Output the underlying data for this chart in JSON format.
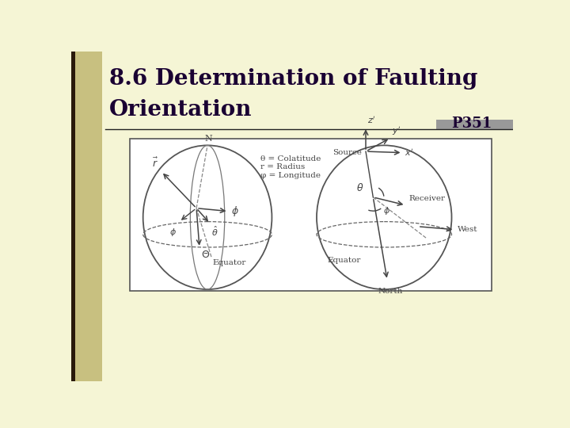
{
  "bg_color": "#f5f5d5",
  "left_bar_color": "#c8c080",
  "dark_bar_color": "#2a1a0a",
  "title_line1": "8.6 Determination of Faulting",
  "title_line2": "Orientation",
  "page_ref": "P351",
  "title_color": "#1a0033",
  "title_fontsize": 20,
  "page_ref_fontsize": 13,
  "divider_color": "#222222",
  "box_bg": "#ffffff",
  "box_edge_color": "#555555",
  "tc": "#444444",
  "gray_rect_color": "#999999",
  "legend_text": [
    "θ = Colatitude",
    "r = Radius",
    "φ = Longitude"
  ]
}
